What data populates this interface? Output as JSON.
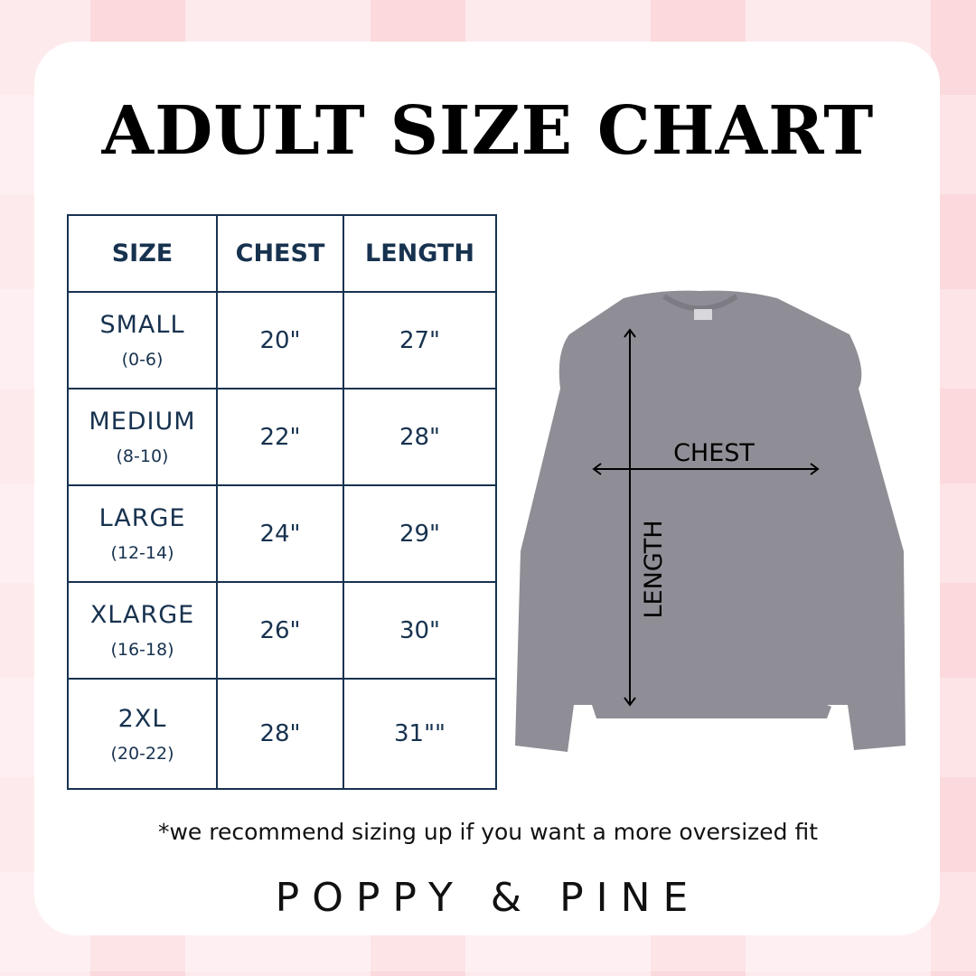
{
  "title": "ADULT SIZE CHART",
  "table": {
    "headers": [
      "SIZE",
      "CHEST",
      "LENGTH"
    ],
    "rows": [
      {
        "size": "SMALL",
        "range": "(0-6)",
        "chest": "20\"",
        "length": "27\""
      },
      {
        "size": "MEDIUM",
        "range": "(8-10)",
        "chest": "22\"",
        "length": "28\""
      },
      {
        "size": "LARGE",
        "range": "(12-14)",
        "chest": "24\"",
        "length": "29\""
      },
      {
        "size": "XLARGE",
        "range": "(16-18)",
        "chest": "26\"",
        "length": "30\""
      },
      {
        "size": "2XL",
        "range": "(20-22)",
        "chest": "28\"",
        "length": "31\"\""
      }
    ]
  },
  "diagram": {
    "chest_label": "CHEST",
    "length_label": "LENGTH",
    "garment_color": "#8f8e96"
  },
  "note": "*we recommend sizing up if you want a more oversized fit",
  "brand": "POPPY & PINE",
  "colors": {
    "table": "#17324f",
    "background": "#fbd9dd"
  }
}
